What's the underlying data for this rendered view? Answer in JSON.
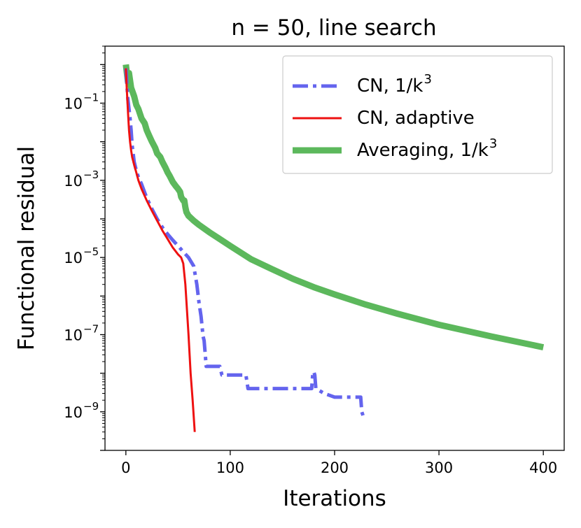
{
  "chart_data": {
    "type": "line",
    "title": "n = 50, line search",
    "xlabel": "Iterations",
    "ylabel": "Functional residual",
    "xscale": "linear",
    "yscale": "log",
    "xlim": [
      -20,
      420
    ],
    "ylim": [
      1e-10,
      3
    ],
    "xticks": [
      0,
      100,
      200,
      300,
      400
    ],
    "yticks": [
      {
        "value": 0.1,
        "label": "10",
        "exp": "−1"
      },
      {
        "value": 0.001,
        "label": "10",
        "exp": "−3"
      },
      {
        "value": 1e-05,
        "label": "10",
        "exp": "−5"
      },
      {
        "value": 1e-07,
        "label": "10",
        "exp": "−7"
      },
      {
        "value": 1e-09,
        "label": "10",
        "exp": "−9"
      }
    ],
    "grid": false,
    "legend_position": "top-right",
    "series": [
      {
        "name": "CN, 1/k",
        "name_exp": "3",
        "color": "#6464ee",
        "style": "dash-dot",
        "x": [
          0,
          1,
          2,
          3,
          4,
          5,
          6,
          8,
          10,
          12,
          15,
          20,
          25,
          30,
          35,
          40,
          45,
          50,
          55,
          60,
          65,
          68,
          70,
          72,
          74,
          75,
          77,
          80,
          90,
          92,
          100,
          110,
          115,
          117,
          120,
          150,
          178,
          179,
          180,
          181,
          182,
          190,
          200,
          210,
          225,
          226,
          228,
          230
        ],
        "y": [
          0.8,
          0.3,
          0.12,
          0.07,
          0.04,
          0.02,
          0.008,
          0.003,
          0.0018,
          0.0012,
          0.0008,
          0.00035,
          0.00018,
          0.0001,
          6e-05,
          4e-05,
          2.8e-05,
          2e-05,
          1.4e-05,
          1e-05,
          6e-06,
          2e-06,
          7e-07,
          3e-07,
          9e-08,
          7e-08,
          1.5e-08,
          1.5e-08,
          1.5e-08,
          9e-09,
          9e-09,
          9e-09,
          9e-09,
          4e-09,
          4e-09,
          4e-09,
          4e-09,
          9e-09,
          1.1e-08,
          9e-09,
          4e-09,
          3e-09,
          2.4e-09,
          2.4e-09,
          2.4e-09,
          1e-09,
          7e-10,
          7e-10
        ]
      },
      {
        "name": "CN, adaptive",
        "color": "#ee1111",
        "style": "solid",
        "x": [
          0,
          1,
          2,
          3,
          4,
          5,
          6,
          8,
          10,
          12,
          15,
          20,
          25,
          30,
          35,
          40,
          45,
          50,
          53,
          55,
          57,
          60,
          62,
          64,
          66
        ],
        "y": [
          0.8,
          0.2,
          0.06,
          0.02,
          0.01,
          0.006,
          0.004,
          0.0025,
          0.0016,
          0.001,
          0.0006,
          0.0003,
          0.00016,
          9e-05,
          5e-05,
          3e-05,
          1.8e-05,
          1.2e-05,
          1e-05,
          7e-06,
          2e-06,
          1e-07,
          1e-08,
          2e-09,
          3e-10
        ]
      },
      {
        "name": "Averaging, 1/k",
        "name_exp": "3",
        "color": "#5cb85c",
        "style": "solid-thick",
        "x": [
          0,
          2,
          3,
          5,
          8,
          10,
          12,
          15,
          18,
          20,
          22,
          25,
          28,
          30,
          33,
          35,
          38,
          40,
          42,
          45,
          48,
          50,
          52,
          53,
          55,
          56,
          57,
          58,
          60,
          65,
          70,
          80,
          90,
          100,
          120,
          140,
          160,
          180,
          200,
          230,
          260,
          300,
          350,
          400
        ],
        "y": [
          1.0,
          0.35,
          0.6,
          0.25,
          0.15,
          0.09,
          0.07,
          0.04,
          0.03,
          0.02,
          0.015,
          0.01,
          0.007,
          0.005,
          0.004,
          0.003,
          0.0021,
          0.0016,
          0.0013,
          0.0009,
          0.0007,
          0.0006,
          0.0005,
          0.00037,
          0.0003,
          0.0003,
          0.0002,
          0.00015,
          0.00012,
          9e-05,
          7e-05,
          4.5e-05,
          3e-05,
          2e-05,
          9e-06,
          5e-06,
          2.8e-06,
          1.7e-06,
          1.1e-06,
          6e-07,
          3.5e-07,
          1.8e-07,
          9e-08,
          4.7e-08
        ]
      }
    ]
  }
}
